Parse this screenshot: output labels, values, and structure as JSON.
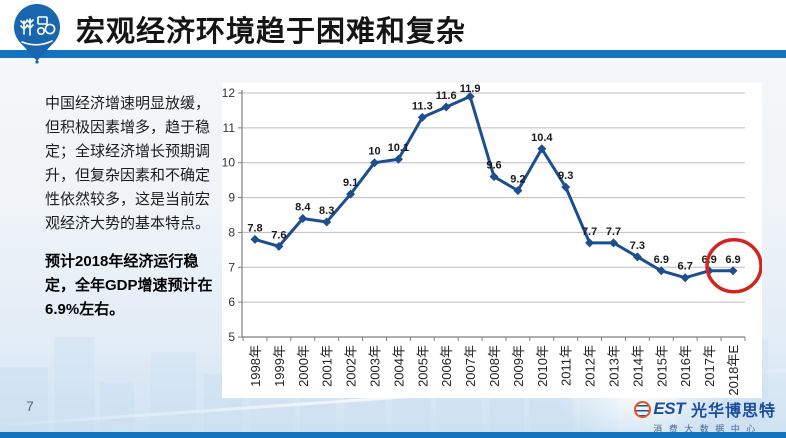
{
  "header": {
    "title": "宏观经济环境趋于困难和复杂"
  },
  "intro": {
    "p1": "中国经济增速明显放缓，但积极因素增多，趋于稳定；全球经济增长预期调升，但复杂因素和不确定性依然较多，这是当前宏观经济大势的基本特点。",
    "p2": "预计2018年经济运行稳定，全年GDP增速预计在6.9%左右。"
  },
  "chart_data": {
    "type": "line",
    "title": "",
    "xlabel": "",
    "ylabel": "",
    "categories": [
      "1998年",
      "1999年",
      "2000年",
      "2001年",
      "2002年",
      "2003年",
      "2004年",
      "2005年",
      "2006年",
      "2007年",
      "2008年",
      "2009年",
      "2010年",
      "2011年",
      "2012年",
      "2013年",
      "2014年",
      "2015年",
      "2016年",
      "2017年",
      "2018年E"
    ],
    "values": [
      7.8,
      7.6,
      8.4,
      8.3,
      9.1,
      10,
      10.1,
      11.3,
      11.6,
      11.9,
      9.6,
      9.2,
      10.4,
      9.3,
      7.7,
      7.7,
      7.3,
      6.9,
      6.7,
      6.9,
      6.9
    ],
    "point_labels": [
      "7.8",
      "7.6",
      "8.4",
      "8.3",
      "9.1",
      "10",
      "10.1",
      "11.3",
      "11.6",
      "11.9",
      "9.6",
      "9.2",
      "10.4",
      "9.3",
      "7.7",
      "7.7",
      "7.3",
      "6.9",
      "6.7",
      "6.9",
      "6.9"
    ],
    "ylim": [
      5,
      12
    ],
    "yticks": [
      5,
      6,
      7,
      8,
      9,
      10,
      11,
      12
    ],
    "grid": true,
    "legend": "none",
    "marker": "diamond",
    "annotation": {
      "type": "circle",
      "index": 20,
      "meaning": "highlight-2018E-forecast-point"
    }
  },
  "footer": {
    "page_number": "7",
    "brand_logo_text": "EST",
    "brand_name": "光华博思特",
    "brand_subtitle": "消 费 大 数 据 中 心"
  },
  "colors": {
    "accent_blue": "#1273bf",
    "line_navy": "#1d4e8f",
    "highlight_red": "#d2251f",
    "brand_blue": "#1b4f9c",
    "brand_orange": "#e8541e",
    "gridline_gray": "#bdbdbd",
    "axis_gray": "#7f7f7f",
    "pin_blue": "#1a66ae"
  }
}
